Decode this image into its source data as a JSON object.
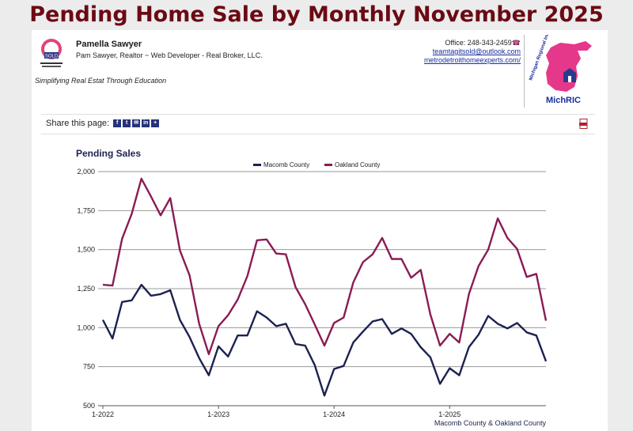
{
  "page_title": "Pending Home Sale by Monthly November 2025",
  "agent": {
    "name": "Pamella Sawyer",
    "subtitle": "Pam Sawyer, Realtor ~ Web Developer - Real Broker, LLC.",
    "tagline": "Simplifying Real Estat Through Education",
    "office": "Office: 248-343-2459",
    "email": "teamtagitsold@outlook.com",
    "website": "metrodetroithomeexperts.com/",
    "badge_text": "SOLD"
  },
  "mls_logo": {
    "text": "MichRIC",
    "arc_text": "Michigan Regional Information Center"
  },
  "share": {
    "label": "Share this page:",
    "icons": [
      "f",
      "t",
      "✉",
      "in",
      "+"
    ]
  },
  "colors": {
    "macomb": "#1b2250",
    "oakland": "#8a1b55",
    "title": "#6b0a14"
  },
  "chart_data": {
    "type": "line",
    "title": "Pending Sales",
    "xlabel": "",
    "ylabel": "",
    "footer": "Macomb County & Oakland County",
    "ylim": [
      500,
      2000
    ],
    "yticks": [
      "2,000",
      "1,750",
      "1,500",
      "1,250",
      "1,000",
      "750",
      "500"
    ],
    "ytick_values": [
      2000,
      1750,
      1500,
      1250,
      1000,
      750,
      500
    ],
    "xticks": [
      {
        "label": "1-2022",
        "index": 0
      },
      {
        "label": "1-2023",
        "index": 12
      },
      {
        "label": "1-2024",
        "index": 24
      },
      {
        "label": "1-2025",
        "index": 36
      }
    ],
    "months": 47,
    "series": [
      {
        "name": "Macomb County",
        "values": [
          1050,
          930,
          1165,
          1175,
          1275,
          1205,
          1215,
          1240,
          1050,
          940,
          805,
          695,
          880,
          815,
          950,
          950,
          1105,
          1065,
          1010,
          1025,
          895,
          885,
          760,
          565,
          735,
          755,
          905,
          975,
          1040,
          1055,
          960,
          995,
          960,
          875,
          810,
          640,
          740,
          695,
          875,
          955,
          1075,
          1025,
          995,
          1030,
          970,
          950,
          785
        ]
      },
      {
        "name": "Oakland County",
        "values": [
          1275,
          1270,
          1570,
          1730,
          1955,
          1840,
          1720,
          1830,
          1495,
          1335,
          1025,
          830,
          1010,
          1080,
          1180,
          1330,
          1560,
          1565,
          1475,
          1470,
          1260,
          1150,
          1020,
          885,
          1030,
          1065,
          1290,
          1420,
          1470,
          1575,
          1440,
          1440,
          1320,
          1370,
          1085,
          885,
          960,
          905,
          1215,
          1395,
          1500,
          1700,
          1575,
          1505,
          1325,
          1345,
          1045
        ]
      }
    ],
    "legend": [
      "Macomb County",
      "Oakland County"
    ],
    "legend_position": "top-center"
  }
}
